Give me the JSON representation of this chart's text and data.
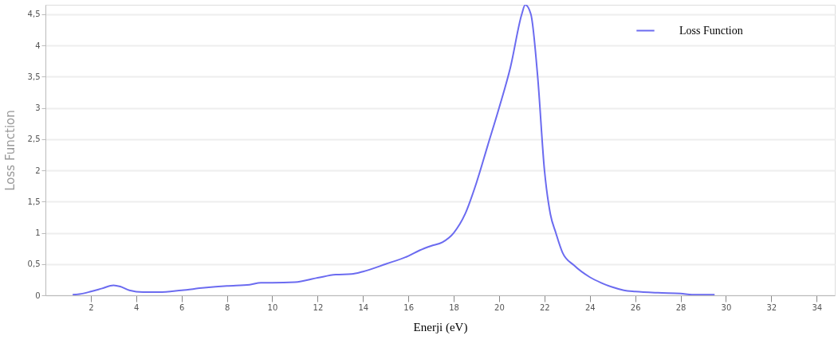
{
  "chart_data": {
    "type": "line",
    "xlabel": "Enerji (eV)",
    "ylabel": "Loss Function",
    "legend": "top right",
    "grid": "y",
    "marker": "none",
    "line_style": "solid",
    "xlim": [
      0,
      34.8
    ],
    "xticks": [
      2,
      4,
      6,
      8,
      10,
      12,
      14,
      16,
      18,
      20,
      22,
      24,
      26,
      28,
      30,
      32,
      34
    ],
    "ylim": [
      0,
      4.65
    ],
    "yticks": [
      0,
      {
        "value": 0.5,
        "label": "0,5"
      },
      1,
      {
        "value": 1.5,
        "label": "1,5"
      },
      2,
      {
        "value": 2.5,
        "label": "2,5"
      },
      3,
      {
        "value": 3.5,
        "label": "3,5"
      },
      4,
      {
        "value": 4.5,
        "label": "4,5"
      }
    ],
    "series": [
      {
        "name": "Loss Function",
        "color": "#6b6bf0",
        "x": [
          1.2,
          1.5,
          2,
          2.5,
          3,
          3.3,
          3.7,
          4.3,
          5,
          6,
          7,
          8,
          9,
          9.5,
          10,
          11,
          12,
          12.8,
          13.5,
          14,
          15,
          16,
          16.5,
          17,
          17.5,
          18,
          18.5,
          19,
          19.5,
          20,
          20.5,
          21,
          21.15,
          21.4,
          21.7,
          22,
          22.26,
          22.5,
          22.8,
          23.3,
          24,
          24.5,
          25,
          25.5,
          26,
          27,
          28,
          28.5,
          29.5
        ],
        "values": [
          0.01,
          0.02,
          0.06,
          0.11,
          0.16,
          0.14,
          0.08,
          0.05,
          0.05,
          0.08,
          0.12,
          0.15,
          0.17,
          0.2,
          0.2,
          0.21,
          0.28,
          0.33,
          0.34,
          0.38,
          0.5,
          0.63,
          0.72,
          0.79,
          0.85,
          1.0,
          1.3,
          1.8,
          2.4,
          3.0,
          3.65,
          4.5,
          4.65,
          4.5,
          3.5,
          2.0,
          1.3,
          1.0,
          0.68,
          0.48,
          0.29,
          0.2,
          0.13,
          0.08,
          0.06,
          0.04,
          0.03,
          0.01,
          0.01
        ]
      }
    ]
  }
}
